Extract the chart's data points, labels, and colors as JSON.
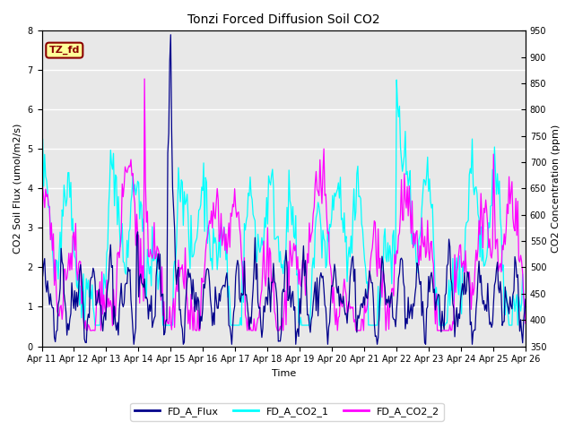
{
  "title": "Tonzi Forced Diffusion Soil CO2",
  "xlabel": "Time",
  "ylabel_left": "CO2 Soil Flux (umol/m2/s)",
  "ylabel_right": "CO2 Concentration (ppm)",
  "ylim_left": [
    0.0,
    8.0
  ],
  "ylim_right": [
    350,
    950
  ],
  "yticks_left": [
    0.0,
    1.0,
    2.0,
    3.0,
    4.0,
    5.0,
    6.0,
    7.0,
    8.0
  ],
  "yticks_right": [
    350,
    400,
    450,
    500,
    550,
    600,
    650,
    700,
    750,
    800,
    850,
    900,
    950
  ],
  "xtick_labels": [
    "Apr 11",
    "Apr 12",
    "Apr 13",
    "Apr 14",
    "Apr 15",
    "Apr 16",
    "Apr 17",
    "Apr 18",
    "Apr 19",
    "Apr 20",
    "Apr 21",
    "Apr 22",
    "Apr 23",
    "Apr 24",
    "Apr 25",
    "Apr 26"
  ],
  "color_flux": "#00008B",
  "color_co2_1": "#00FFFF",
  "color_co2_2": "#FF00FF",
  "legend_labels": [
    "FD_A_Flux",
    "FD_A_CO2_1",
    "FD_A_CO2_2"
  ],
  "annotation_text": "TZ_fd",
  "annotation_color": "#8B0000",
  "annotation_bg": "#FFFF99",
  "n_points": 500,
  "background_color": "#e8e8e8",
  "plot_bg": "#ffffff",
  "grid_color": "#ffffff",
  "linewidth": 0.9
}
